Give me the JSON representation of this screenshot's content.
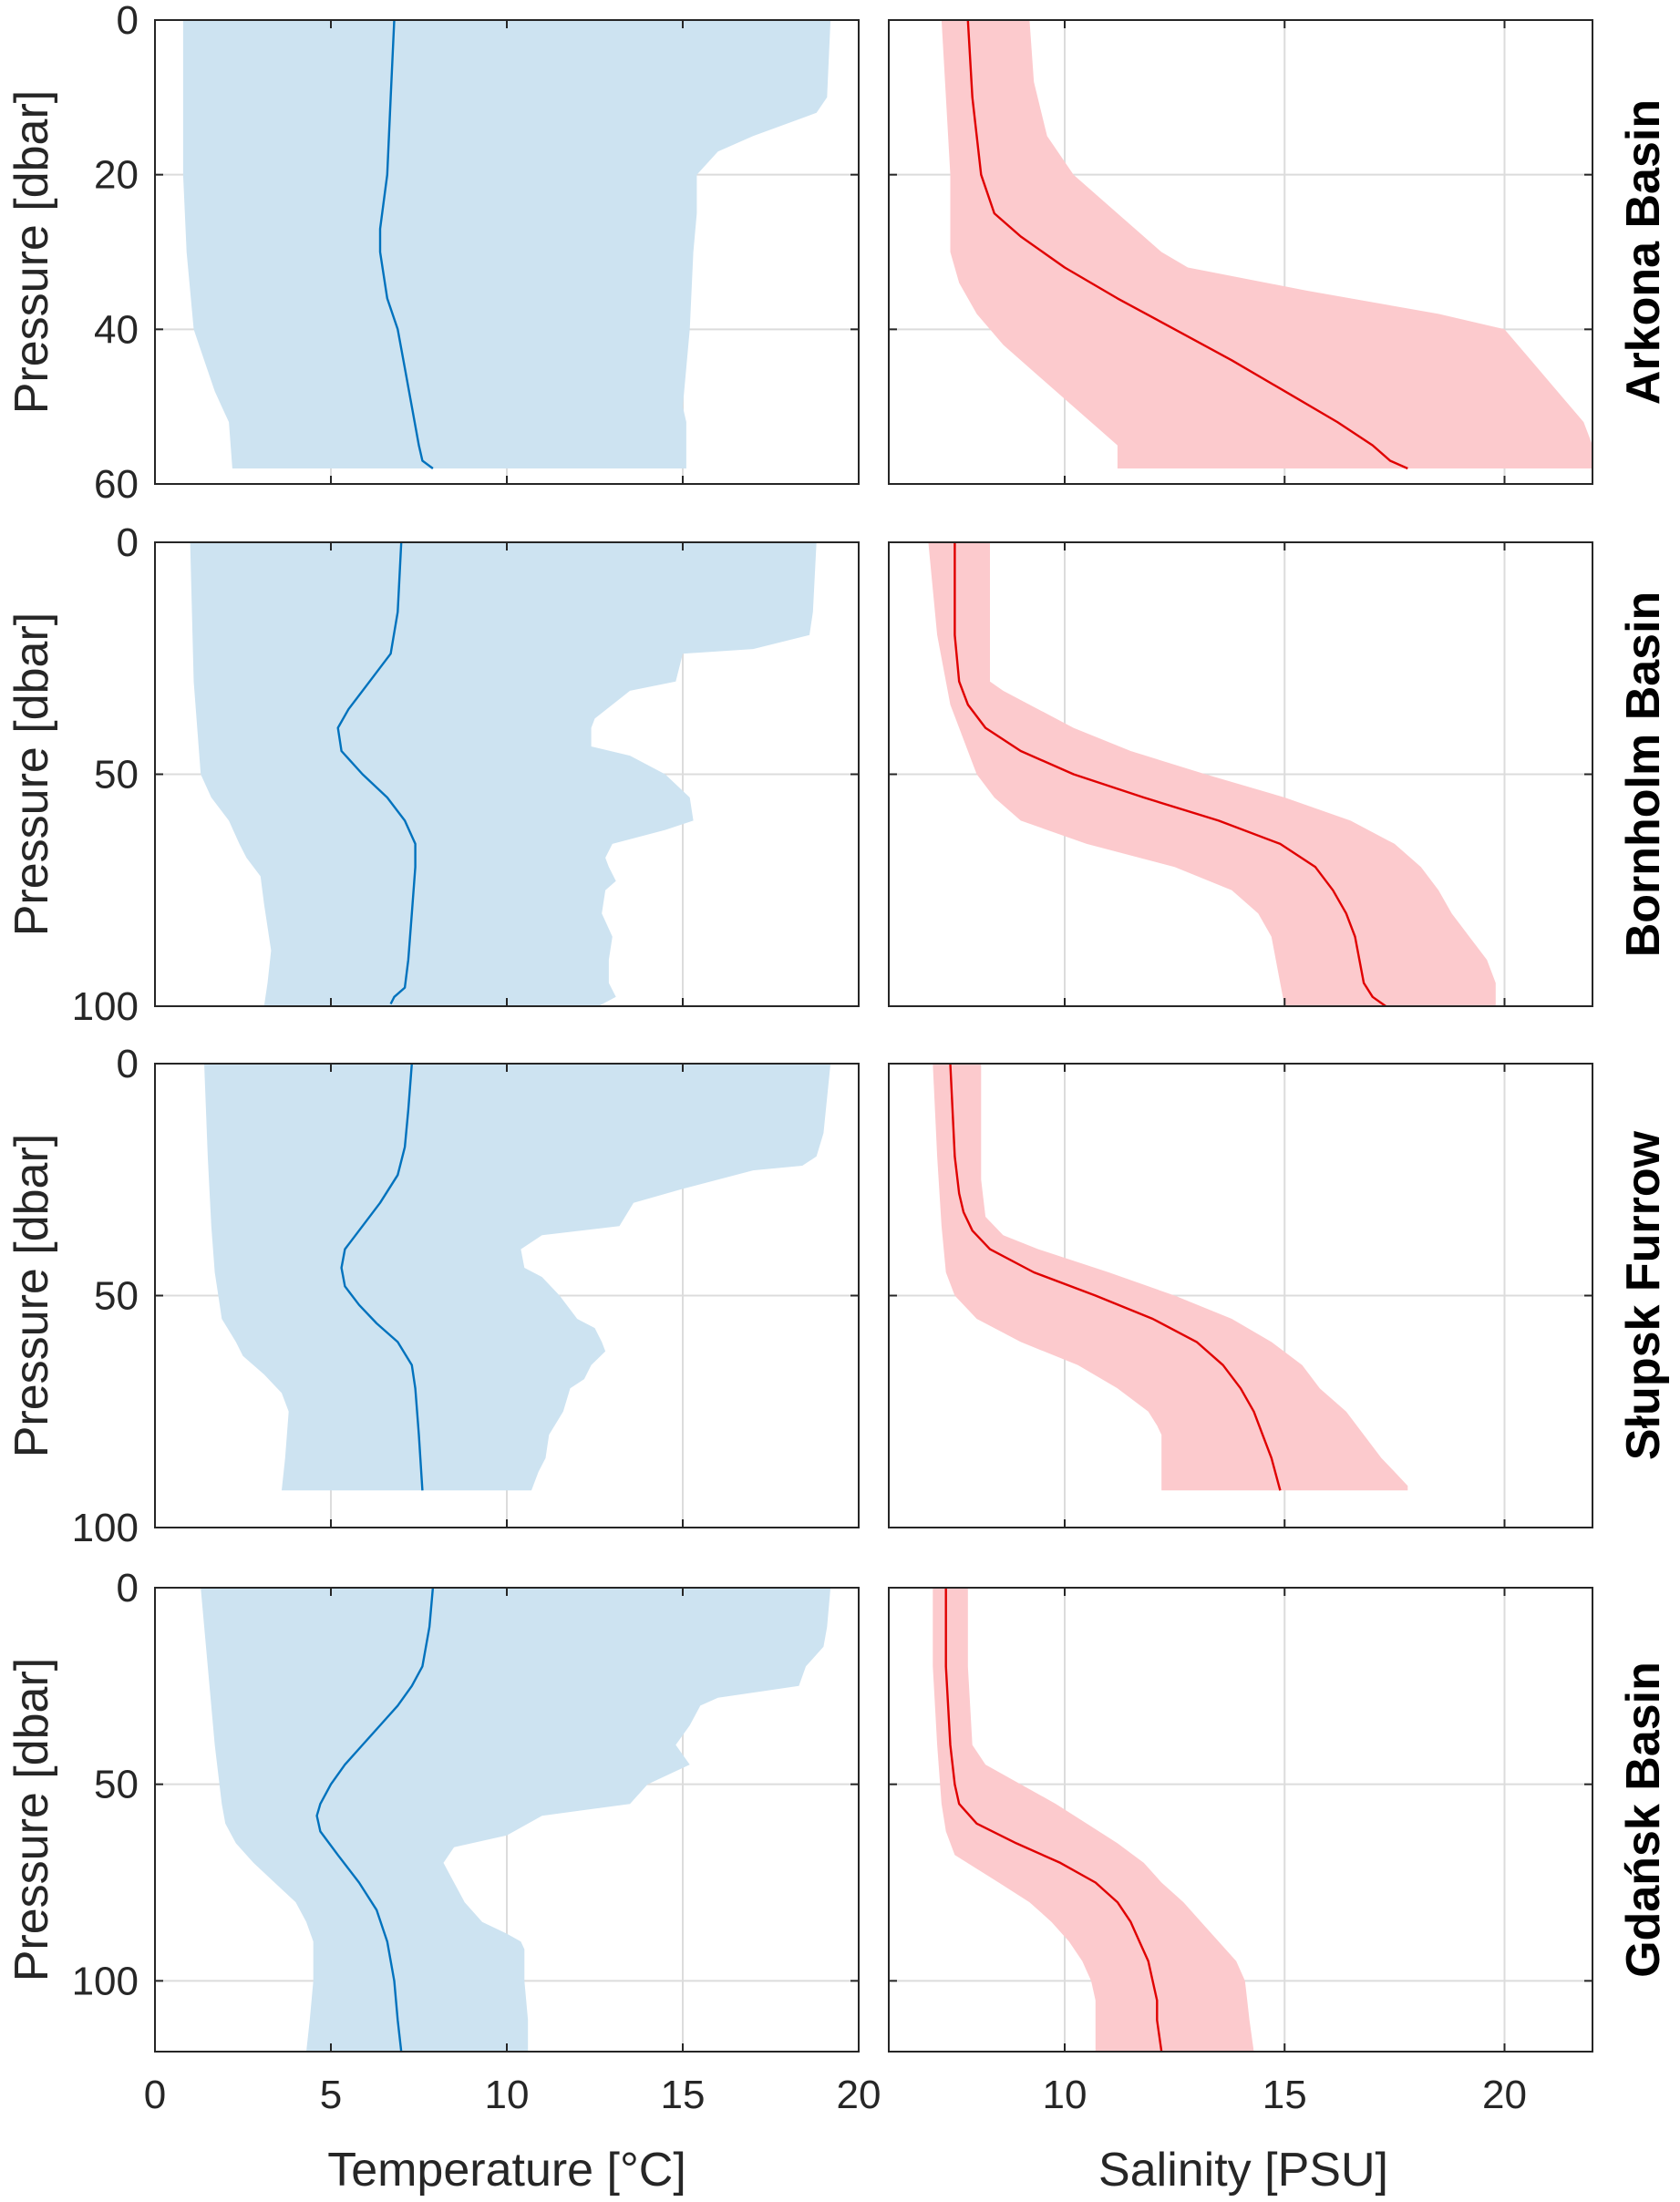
{
  "x_axes": {
    "temperature": {
      "label": "Temperature [°C]",
      "range": [
        0,
        20
      ],
      "ticks": [
        0,
        5,
        10,
        15,
        20
      ]
    },
    "salinity": {
      "label": "Salinity [PSU]",
      "range": [
        6,
        22
      ],
      "ticks": [
        10,
        15,
        20
      ]
    }
  },
  "y_axis_label": "Pressure [dbar]",
  "colors": {
    "temp_line": "#0072bd",
    "temp_fill": "#cde3f1",
    "sal_line": "#e00000",
    "sal_fill": "#fccacd",
    "axis": "#262626",
    "grid": "#dcdcdc"
  },
  "chart_data": [
    {
      "type": "area",
      "panel": "temperature",
      "row": 0,
      "region": "Arkona Basin",
      "ylim": [
        0,
        60
      ],
      "yticks": [
        0,
        20,
        40,
        60
      ],
      "y_reversed": true,
      "grid": true,
      "mean": {
        "p": [
          0,
          10,
          20,
          27,
          30,
          36,
          40,
          45,
          50,
          55,
          57,
          58
        ],
        "v": [
          6.8,
          6.7,
          6.6,
          6.4,
          6.4,
          6.6,
          6.9,
          7.1,
          7.3,
          7.5,
          7.6,
          7.9
        ]
      },
      "min": {
        "p": [
          0,
          20,
          30,
          40,
          44,
          48,
          50,
          52,
          58
        ],
        "v": [
          0.8,
          0.8,
          0.9,
          1.1,
          1.4,
          1.7,
          1.9,
          2.1,
          2.2
        ]
      },
      "max": {
        "p": [
          0,
          10,
          12,
          15,
          17,
          20,
          25,
          30,
          40,
          50,
          52,
          58
        ],
        "v": [
          19.2,
          19.1,
          18.8,
          17.0,
          16.0,
          15.4,
          15.4,
          15.3,
          15.2,
          15.0,
          15.1,
          15.1
        ]
      }
    },
    {
      "type": "area",
      "panel": "salinity",
      "row": 0,
      "region": "Arkona Basin",
      "ylim": [
        0,
        60
      ],
      "yticks": [
        0,
        20,
        40,
        60
      ],
      "y_reversed": true,
      "grid": true,
      "mean": {
        "p": [
          0,
          10,
          15,
          20,
          25,
          28,
          32,
          36,
          40,
          44,
          48,
          52,
          55,
          57,
          58
        ],
        "v": [
          7.8,
          7.9,
          8.0,
          8.1,
          8.4,
          9.0,
          10.0,
          11.2,
          12.5,
          13.8,
          15.0,
          16.2,
          17.0,
          17.4,
          17.8
        ]
      },
      "min": {
        "p": [
          0,
          10,
          20,
          30,
          34,
          38,
          42,
          46,
          50,
          53,
          55,
          58
        ],
        "v": [
          7.2,
          7.3,
          7.4,
          7.4,
          7.6,
          8.0,
          8.6,
          9.4,
          10.2,
          10.8,
          11.2,
          11.2
        ]
      },
      "max": {
        "p": [
          0,
          8,
          15,
          20,
          25,
          30,
          32,
          35,
          38,
          40,
          44,
          48,
          52,
          55,
          58
        ],
        "v": [
          9.2,
          9.3,
          9.6,
          10.2,
          11.2,
          12.2,
          12.8,
          15.5,
          18.5,
          20.0,
          20.6,
          21.2,
          21.8,
          22.0,
          22.0
        ]
      }
    },
    {
      "type": "area",
      "panel": "temperature",
      "row": 1,
      "region": "Bornholm Basin",
      "ylim": [
        0,
        100
      ],
      "yticks": [
        0,
        50,
        100
      ],
      "y_reversed": true,
      "grid": true,
      "mean": {
        "p": [
          0,
          15,
          24,
          30,
          36,
          40,
          45,
          50,
          55,
          60,
          65,
          70,
          80,
          90,
          96,
          98,
          99.5
        ],
        "v": [
          7.0,
          6.9,
          6.7,
          6.1,
          5.5,
          5.2,
          5.3,
          5.9,
          6.6,
          7.1,
          7.4,
          7.4,
          7.3,
          7.2,
          7.1,
          6.8,
          6.7
        ]
      },
      "min": {
        "p": [
          0,
          30,
          50,
          55,
          60,
          65,
          68,
          72,
          78,
          88,
          95,
          100
        ],
        "v": [
          1.0,
          1.1,
          1.3,
          1.6,
          2.1,
          2.4,
          2.6,
          3.0,
          3.1,
          3.3,
          3.2,
          3.1
        ]
      },
      "max": {
        "p": [
          0,
          15,
          20,
          23,
          24,
          30,
          32,
          38,
          40,
          44,
          46,
          50,
          55,
          60,
          62,
          65,
          68,
          70,
          73,
          75,
          80,
          85,
          90,
          95,
          98,
          100
        ],
        "v": [
          18.8,
          18.7,
          18.6,
          17.0,
          15.0,
          14.8,
          13.5,
          12.5,
          12.4,
          12.4,
          13.5,
          14.5,
          15.2,
          15.3,
          14.5,
          13.0,
          12.8,
          12.9,
          13.1,
          12.8,
          12.7,
          13.0,
          12.9,
          12.9,
          13.1,
          12.6
        ]
      }
    },
    {
      "type": "area",
      "panel": "salinity",
      "row": 1,
      "region": "Bornholm Basin",
      "ylim": [
        0,
        100
      ],
      "yticks": [
        0,
        50,
        100
      ],
      "y_reversed": true,
      "grid": true,
      "mean": {
        "p": [
          0,
          20,
          30,
          35,
          40,
          45,
          50,
          55,
          60,
          65,
          70,
          75,
          80,
          85,
          90,
          95,
          98,
          100
        ],
        "v": [
          7.5,
          7.5,
          7.6,
          7.8,
          8.2,
          9.0,
          10.2,
          11.8,
          13.5,
          14.9,
          15.7,
          16.1,
          16.4,
          16.6,
          16.7,
          16.8,
          17.0,
          17.3
        ]
      },
      "min": {
        "p": [
          0,
          20,
          30,
          35,
          40,
          45,
          50,
          55,
          60,
          65,
          70,
          75,
          80,
          85,
          90,
          95,
          100
        ],
        "v": [
          6.9,
          7.1,
          7.3,
          7.4,
          7.6,
          7.8,
          8.0,
          8.4,
          9.0,
          10.5,
          12.5,
          13.8,
          14.4,
          14.7,
          14.8,
          14.9,
          15.0
        ]
      },
      "max": {
        "p": [
          0,
          20,
          30,
          32,
          40,
          45,
          50,
          55,
          60,
          65,
          70,
          75,
          80,
          85,
          90,
          95,
          100
        ],
        "v": [
          8.3,
          8.3,
          8.3,
          8.6,
          10.2,
          11.5,
          13.2,
          15.0,
          16.5,
          17.5,
          18.1,
          18.5,
          18.8,
          19.2,
          19.6,
          19.8,
          19.8
        ]
      }
    },
    {
      "type": "area",
      "panel": "temperature",
      "row": 2,
      "region": "Słupsk Furrow",
      "ylim": [
        0,
        100
      ],
      "yticks": [
        0,
        50,
        100
      ],
      "y_reversed": true,
      "grid": true,
      "mean": {
        "p": [
          0,
          10,
          18,
          24,
          30,
          36,
          40,
          44,
          48,
          52,
          56,
          60,
          65,
          70,
          80,
          92
        ],
        "v": [
          7.3,
          7.2,
          7.1,
          6.9,
          6.4,
          5.8,
          5.4,
          5.3,
          5.4,
          5.8,
          6.3,
          6.9,
          7.3,
          7.4,
          7.5,
          7.6
        ]
      },
      "min": {
        "p": [
          0,
          20,
          35,
          45,
          50,
          55,
          60,
          63,
          67,
          71,
          75,
          85,
          92
        ],
        "v": [
          1.4,
          1.5,
          1.6,
          1.7,
          1.8,
          1.9,
          2.3,
          2.5,
          3.1,
          3.6,
          3.8,
          3.7,
          3.6
        ]
      },
      "max": {
        "p": [
          0,
          15,
          20,
          22,
          23,
          27,
          30,
          35,
          37,
          40,
          44,
          46,
          50,
          55,
          57,
          60,
          62,
          65,
          68,
          70,
          75,
          80,
          85,
          88,
          92
        ],
        "v": [
          19.2,
          19.0,
          18.8,
          18.4,
          17.0,
          15.0,
          13.6,
          13.2,
          11.0,
          10.4,
          10.5,
          11.0,
          11.5,
          12.0,
          12.5,
          12.7,
          12.8,
          12.4,
          12.2,
          11.8,
          11.6,
          11.2,
          11.1,
          10.9,
          10.7
        ]
      }
    },
    {
      "type": "area",
      "panel": "salinity",
      "row": 2,
      "region": "Słupsk Furrow",
      "ylim": [
        0,
        100
      ],
      "yticks": [
        0,
        50,
        100
      ],
      "y_reversed": true,
      "grid": true,
      "mean": {
        "p": [
          0,
          20,
          28,
          32,
          36,
          40,
          45,
          50,
          55,
          60,
          65,
          70,
          75,
          80,
          85,
          92
        ],
        "v": [
          7.4,
          7.5,
          7.6,
          7.7,
          7.9,
          8.3,
          9.3,
          10.7,
          12.0,
          13.0,
          13.6,
          14.0,
          14.3,
          14.5,
          14.7,
          14.9
        ]
      },
      "min": {
        "p": [
          0,
          20,
          35,
          45,
          50,
          55,
          60,
          65,
          70,
          75,
          78,
          80,
          85,
          92
        ],
        "v": [
          7.0,
          7.1,
          7.2,
          7.3,
          7.5,
          8.0,
          9.0,
          10.3,
          11.2,
          11.9,
          12.1,
          12.2,
          12.2,
          12.2
        ]
      },
      "max": {
        "p": [
          0,
          25,
          33,
          37,
          40,
          45,
          50,
          55,
          60,
          65,
          70,
          75,
          80,
          85,
          88,
          91,
          92
        ],
        "v": [
          8.1,
          8.1,
          8.2,
          8.6,
          9.4,
          11.0,
          12.5,
          13.8,
          14.7,
          15.4,
          15.8,
          16.4,
          16.8,
          17.2,
          17.5,
          17.8,
          17.8
        ]
      }
    },
    {
      "type": "area",
      "panel": "temperature",
      "row": 3,
      "region": "Gdańsk Basin",
      "ylim": [
        0,
        118
      ],
      "yticks": [
        0,
        50,
        100
      ],
      "y_reversed": true,
      "grid": true,
      "mean": {
        "p": [
          0,
          10,
          20,
          25,
          30,
          35,
          40,
          45,
          50,
          55,
          58,
          62,
          68,
          75,
          82,
          90,
          100,
          110,
          118
        ],
        "v": [
          7.9,
          7.8,
          7.6,
          7.3,
          6.9,
          6.4,
          5.9,
          5.4,
          5.0,
          4.7,
          4.6,
          4.7,
          5.2,
          5.8,
          6.3,
          6.6,
          6.8,
          6.9,
          7.0
        ]
      },
      "min": {
        "p": [
          0,
          20,
          40,
          55,
          60,
          65,
          70,
          75,
          80,
          85,
          90,
          100,
          110,
          118
        ],
        "v": [
          1.3,
          1.5,
          1.7,
          1.9,
          2.0,
          2.3,
          2.8,
          3.4,
          4.0,
          4.3,
          4.5,
          4.5,
          4.4,
          4.3
        ]
      },
      "max": {
        "p": [
          0,
          10,
          15,
          20,
          25,
          28,
          30,
          35,
          40,
          45,
          50,
          55,
          58,
          63,
          66,
          70,
          75,
          80,
          85,
          88,
          90,
          92,
          100,
          110,
          118
        ],
        "v": [
          19.2,
          19.1,
          19.0,
          18.5,
          18.3,
          16.0,
          15.5,
          15.2,
          14.8,
          15.2,
          14.0,
          13.5,
          11.0,
          10.0,
          8.5,
          8.2,
          8.5,
          8.8,
          9.3,
          10.0,
          10.4,
          10.5,
          10.5,
          10.6,
          10.6
        ]
      }
    },
    {
      "type": "area",
      "panel": "salinity",
      "row": 3,
      "region": "Gdańsk Basin",
      "ylim": [
        0,
        118
      ],
      "yticks": [
        0,
        50,
        100
      ],
      "y_reversed": true,
      "grid": true,
      "mean": {
        "p": [
          0,
          20,
          40,
          50,
          55,
          60,
          65,
          70,
          75,
          80,
          85,
          90,
          95,
          100,
          105,
          110,
          118
        ],
        "v": [
          7.3,
          7.3,
          7.4,
          7.5,
          7.6,
          8.0,
          8.9,
          9.9,
          10.7,
          11.2,
          11.5,
          11.7,
          11.9,
          12.0,
          12.1,
          12.1,
          12.2
        ]
      },
      "min": {
        "p": [
          0,
          20,
          40,
          55,
          62,
          68,
          75,
          80,
          85,
          90,
          95,
          100,
          105,
          110,
          118
        ],
        "v": [
          7.0,
          7.0,
          7.1,
          7.2,
          7.3,
          7.5,
          8.5,
          9.2,
          9.7,
          10.1,
          10.4,
          10.6,
          10.7,
          10.7,
          10.7
        ]
      },
      "max": {
        "p": [
          0,
          20,
          40,
          45,
          50,
          55,
          60,
          65,
          70,
          75,
          80,
          85,
          90,
          95,
          100,
          110,
          118
        ],
        "v": [
          7.8,
          7.8,
          7.9,
          8.2,
          9.0,
          9.8,
          10.5,
          11.2,
          11.8,
          12.2,
          12.7,
          13.1,
          13.5,
          13.9,
          14.1,
          14.2,
          14.3
        ]
      }
    }
  ]
}
